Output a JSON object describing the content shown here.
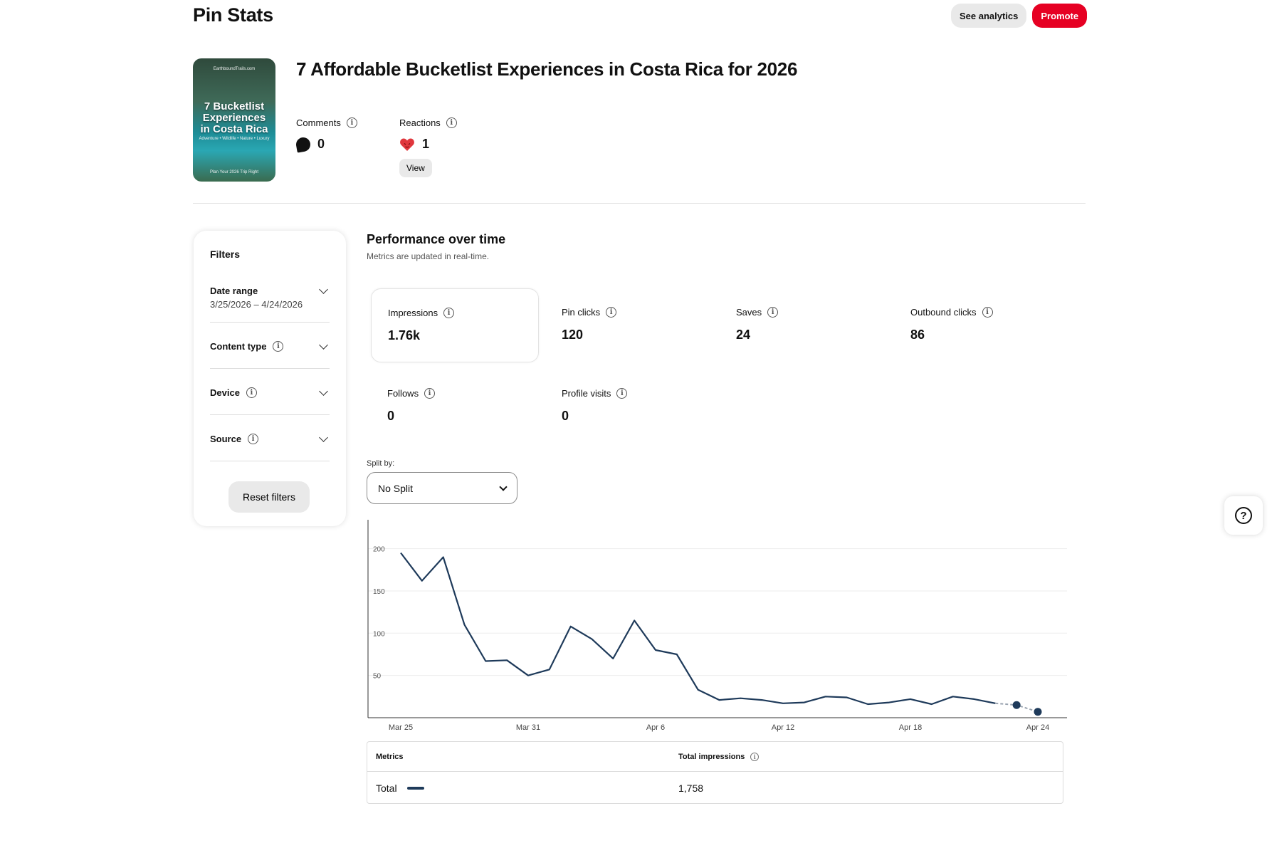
{
  "header": {
    "title": "Pin Stats",
    "see_analytics": "See analytics",
    "promote": "Promote"
  },
  "pin": {
    "title": "7 Affordable Bucketlist Experiences in Costa Rica for 2026",
    "thumb_top": "EarthboundTrails.com",
    "thumb_title": [
      "7 Bucketlist",
      "Experiences",
      "in Costa Rica"
    ],
    "thumb_sub": "Adventure • Wildlife • Nature • Luxury",
    "thumb_bottom": "Plan Your 2026 Trip Right",
    "comments_label": "Comments",
    "comments_value": "0",
    "reactions_label": "Reactions",
    "reactions_value": "1",
    "view_label": "View"
  },
  "filters": {
    "title": "Filters",
    "date_range_label": "Date range",
    "date_range_value": "3/25/2026 – 4/24/2026",
    "content_type": "Content type",
    "device": "Device",
    "source": "Source",
    "reset": "Reset filters"
  },
  "performance": {
    "title": "Performance over time",
    "subtitle": "Metrics are updated in real-time.",
    "metrics": [
      {
        "label": "Impressions",
        "value": "1.76k"
      },
      {
        "label": "Pin clicks",
        "value": "120"
      },
      {
        "label": "Saves",
        "value": "24"
      },
      {
        "label": "Outbound clicks",
        "value": "86"
      },
      {
        "label": "Follows",
        "value": "0"
      },
      {
        "label": "Profile visits",
        "value": "0"
      }
    ],
    "split_label": "Split by:",
    "split_value": "No Split"
  },
  "chart_data": {
    "type": "line",
    "x_ticks": [
      "Mar 25",
      "Mar 31",
      "Apr 6",
      "Apr 12",
      "Apr 18",
      "Apr 24"
    ],
    "y_ticks": [
      50,
      100,
      150,
      200
    ],
    "ylim": [
      0,
      230
    ],
    "series": [
      {
        "values": [
          195,
          162,
          190,
          110,
          67,
          68,
          50,
          57,
          108,
          93,
          70,
          115,
          80,
          75,
          33,
          21,
          23,
          21,
          17,
          18,
          25,
          24,
          16,
          18,
          22,
          16,
          25,
          22,
          17,
          15,
          7
        ]
      }
    ],
    "partial_points": 3,
    "line_color": "#1e3a5a"
  },
  "table": {
    "col1": "Metrics",
    "col2": "Total impressions",
    "row_label": "Total",
    "row_value": "1,758"
  }
}
